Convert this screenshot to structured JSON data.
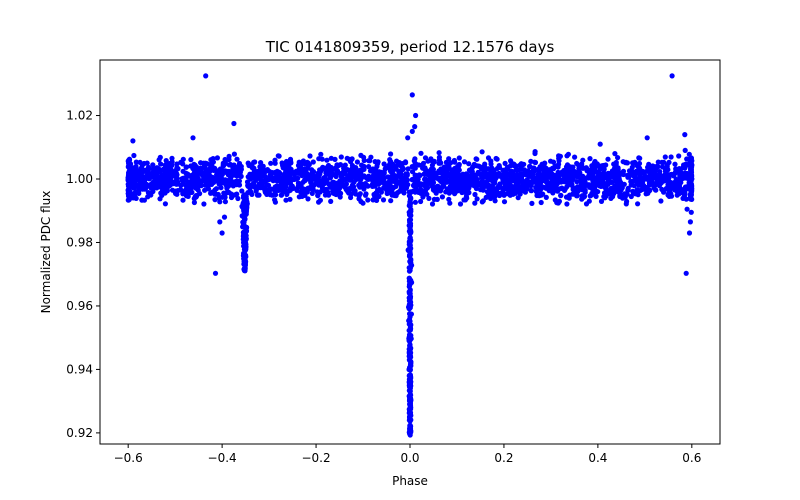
{
  "chart_data": {
    "type": "scatter",
    "title": "TIC 0141809359, period 12.1576 days",
    "xlabel": "Phase",
    "ylabel": "Normalized PDC flux",
    "xlim": [
      -0.66,
      0.66
    ],
    "ylim": [
      0.9165,
      1.0375
    ],
    "xticks": [
      -0.6,
      -0.4,
      -0.2,
      0.0,
      0.2,
      0.4,
      0.6
    ],
    "xtick_labels": [
      "−0.6",
      "−0.4",
      "−0.2",
      "0.0",
      "0.2",
      "0.4",
      "0.6"
    ],
    "yticks": [
      0.92,
      0.94,
      0.96,
      0.98,
      1.0,
      1.02
    ],
    "ytick_labels": [
      "0.92",
      "0.94",
      "0.96",
      "0.98",
      "1.00",
      "1.02"
    ],
    "grid": false,
    "marker_color": "#0000ff",
    "series": [
      {
        "name": "Normalized PDC flux",
        "description": "Phase-folded light curve: baseline scatter around 1.000 (approx. 0.993-1.008) from phase -0.6 to 0.6, secondary eclipse near phase -0.35 reaching ~0.971, primary eclipse at phase 0.0 reaching ~0.919",
        "baseline": {
          "phase_range": [
            -0.6,
            0.6
          ],
          "flux_center": 1.0,
          "flux_spread": 0.0075
        },
        "secondary_eclipse": {
          "phase": -0.352,
          "min_flux": 0.971,
          "half_width": 0.006
        },
        "primary_eclipse": {
          "phase": 0.0,
          "min_flux": 0.919,
          "half_width": 0.004
        },
        "outliers": [
          {
            "x": -0.435,
            "y": 1.0325
          },
          {
            "x": 0.558,
            "y": 1.0325
          },
          {
            "x": -0.414,
            "y": 0.9703
          },
          {
            "x": 0.588,
            "y": 0.9703
          },
          {
            "x": -0.375,
            "y": 1.0175
          },
          {
            "x": 0.005,
            "y": 1.0265
          },
          {
            "x": 0.012,
            "y": 1.02
          },
          {
            "x": 0.01,
            "y": 1.0165
          },
          {
            "x": 0.005,
            "y": 1.015
          },
          {
            "x": -0.005,
            "y": 1.013
          },
          {
            "x": -0.405,
            "y": 0.9865
          },
          {
            "x": -0.4,
            "y": 0.983
          },
          {
            "x": -0.395,
            "y": 0.988
          },
          {
            "x": 0.595,
            "y": 0.983
          },
          {
            "x": 0.597,
            "y": 0.9865
          },
          {
            "x": 0.59,
            "y": 0.9905
          },
          {
            "x": 0.599,
            "y": 0.9895
          },
          {
            "x": -0.462,
            "y": 1.013
          },
          {
            "x": 0.505,
            "y": 1.013
          },
          {
            "x": 0.585,
            "y": 1.014
          },
          {
            "x": 0.586,
            "y": 1.009
          },
          {
            "x": -0.59,
            "y": 1.012
          },
          {
            "x": 0.405,
            "y": 1.011
          }
        ]
      }
    ]
  }
}
